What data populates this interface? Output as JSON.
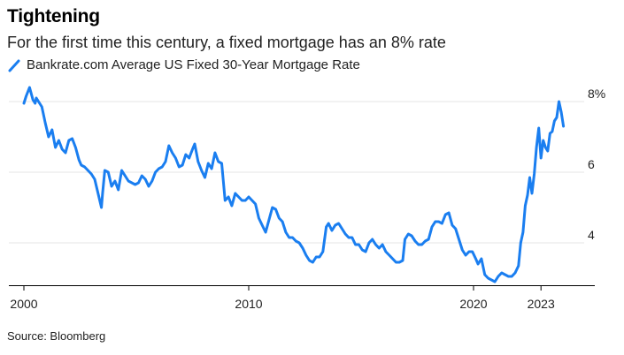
{
  "header": {
    "title": "Tightening",
    "subtitle": "For the first time this century, a fixed mortgage has an 8% rate"
  },
  "footer": {
    "source": "Source: Bloomberg"
  },
  "colors": {
    "series": "#1a7ef0",
    "grid": "#e4e4e4",
    "axis": "#000000"
  },
  "chart_data": {
    "type": "line",
    "title": "Tightening",
    "subtitle": "For the first time this century, a fixed mortgage has an 8% rate",
    "legend": "top-left",
    "grid": true,
    "xlim": [
      2000.0,
      2024.7
    ],
    "ylim": [
      2.8,
      8.5
    ],
    "x_ticks": [
      {
        "value": 2000,
        "label": "2000"
      },
      {
        "value": 2010,
        "label": "2010"
      },
      {
        "value": 2020,
        "label": "2020"
      },
      {
        "value": 2023,
        "label": "2023"
      }
    ],
    "y_ticks": [
      {
        "value": 8,
        "label": "8%"
      },
      {
        "value": 6,
        "label": "6"
      },
      {
        "value": 4,
        "label": "4"
      }
    ],
    "series": [
      {
        "name": "Bankrate.com Average US Fixed 30-Year Mortgage Rate",
        "x": [
          2000.0,
          2000.1,
          2000.25,
          2000.4,
          2000.5,
          2000.55,
          2000.65,
          2000.8,
          2000.95,
          2001.1,
          2001.25,
          2001.4,
          2001.55,
          2001.7,
          2001.85,
          2002.0,
          2002.15,
          2002.3,
          2002.45,
          2002.55,
          2002.7,
          2002.85,
          2003.0,
          2003.15,
          2003.3,
          2003.45,
          2003.5,
          2003.6,
          2003.75,
          2003.9,
          2004.05,
          2004.2,
          2004.35,
          2004.5,
          2004.65,
          2004.8,
          2004.95,
          2005.1,
          2005.25,
          2005.4,
          2005.55,
          2005.7,
          2005.85,
          2006.0,
          2006.15,
          2006.3,
          2006.45,
          2006.6,
          2006.75,
          2006.9,
          2007.05,
          2007.2,
          2007.35,
          2007.5,
          2007.6,
          2007.75,
          2007.9,
          2008.05,
          2008.2,
          2008.35,
          2008.5,
          2008.65,
          2008.8,
          2008.95,
          2009.1,
          2009.25,
          2009.4,
          2009.55,
          2009.7,
          2009.85,
          2010.0,
          2010.15,
          2010.3,
          2010.45,
          2010.6,
          2010.75,
          2010.9,
          2011.05,
          2011.2,
          2011.35,
          2011.5,
          2011.65,
          2011.8,
          2011.95,
          2012.1,
          2012.25,
          2012.4,
          2012.55,
          2012.7,
          2012.85,
          2013.0,
          2013.15,
          2013.3,
          2013.45,
          2013.55,
          2013.7,
          2013.85,
          2014.0,
          2014.15,
          2014.3,
          2014.45,
          2014.6,
          2014.75,
          2014.9,
          2015.05,
          2015.2,
          2015.35,
          2015.5,
          2015.65,
          2015.8,
          2015.95,
          2016.1,
          2016.25,
          2016.4,
          2016.55,
          2016.7,
          2016.85,
          2016.95,
          2017.1,
          2017.25,
          2017.4,
          2017.55,
          2017.7,
          2017.85,
          2018.0,
          2018.15,
          2018.3,
          2018.45,
          2018.6,
          2018.75,
          2018.9,
          2019.05,
          2019.2,
          2019.35,
          2019.5,
          2019.65,
          2019.8,
          2019.95,
          2020.1,
          2020.2,
          2020.35,
          2020.5,
          2020.65,
          2020.8,
          2020.95,
          2021.1,
          2021.25,
          2021.4,
          2021.55,
          2021.7,
          2021.85,
          2022.0,
          2022.1,
          2022.2,
          2022.3,
          2022.4,
          2022.5,
          2022.6,
          2022.7,
          2022.8,
          2022.9,
          2023.0,
          2023.1,
          2023.2,
          2023.3,
          2023.4,
          2023.5,
          2023.6,
          2023.7,
          2023.8,
          2023.9,
          2024.0
        ],
        "values": [
          7.95,
          8.15,
          8.4,
          8.05,
          7.95,
          8.1,
          8.0,
          7.85,
          7.4,
          7.0,
          7.2,
          6.7,
          6.9,
          6.65,
          6.55,
          6.9,
          6.95,
          6.7,
          6.35,
          6.2,
          6.15,
          6.05,
          5.95,
          5.8,
          5.4,
          5.0,
          5.4,
          6.05,
          6.0,
          5.6,
          5.75,
          5.5,
          6.05,
          5.9,
          5.75,
          5.7,
          5.65,
          5.7,
          5.9,
          5.8,
          5.6,
          5.75,
          6.0,
          6.1,
          6.15,
          6.3,
          6.75,
          6.55,
          6.4,
          6.15,
          6.2,
          6.5,
          6.4,
          6.65,
          6.8,
          6.3,
          6.05,
          5.85,
          6.25,
          6.1,
          6.55,
          6.3,
          6.25,
          5.2,
          5.3,
          5.05,
          5.4,
          5.3,
          5.2,
          5.2,
          5.3,
          5.2,
          5.1,
          4.7,
          4.5,
          4.3,
          4.65,
          5.0,
          4.95,
          4.7,
          4.6,
          4.3,
          4.15,
          4.15,
          4.05,
          4.0,
          3.85,
          3.65,
          3.5,
          3.45,
          3.6,
          3.6,
          3.75,
          4.45,
          4.55,
          4.35,
          4.5,
          4.55,
          4.4,
          4.25,
          4.15,
          4.15,
          3.95,
          3.95,
          3.8,
          3.75,
          4.0,
          4.1,
          3.95,
          3.85,
          3.95,
          3.75,
          3.65,
          3.55,
          3.45,
          3.45,
          3.5,
          4.1,
          4.25,
          4.2,
          4.05,
          3.95,
          3.95,
          4.05,
          4.1,
          4.45,
          4.6,
          4.6,
          4.55,
          4.8,
          4.85,
          4.5,
          4.4,
          4.1,
          3.8,
          3.65,
          3.75,
          3.75,
          3.55,
          3.4,
          3.55,
          3.1,
          3.0,
          2.95,
          2.9,
          3.05,
          3.15,
          3.1,
          3.05,
          3.05,
          3.15,
          3.35,
          4.0,
          4.3,
          5.05,
          5.35,
          5.85,
          5.4,
          5.95,
          6.7,
          7.25,
          6.4,
          6.9,
          6.7,
          6.6,
          7.1,
          7.15,
          7.45,
          7.55,
          8.0,
          7.7,
          7.3
        ]
      }
    ]
  }
}
